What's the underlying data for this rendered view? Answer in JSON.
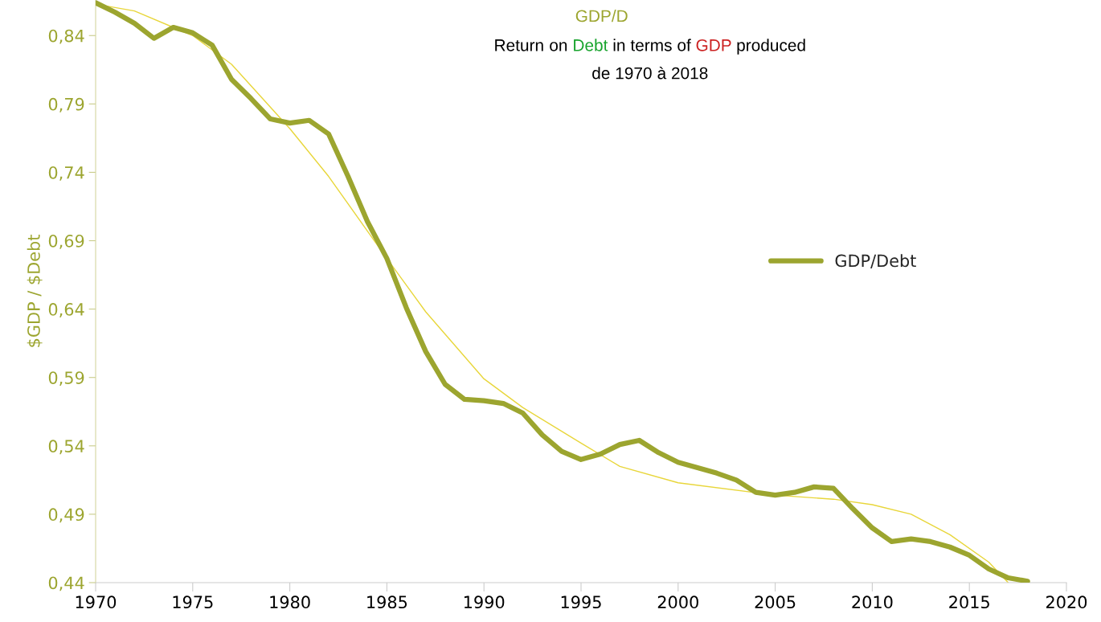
{
  "chart_data": {
    "type": "line",
    "title": "GDP/D",
    "subtitle": "Return on Debt in terms of GDP produced\nde 1970 à 2018",
    "ylabel": "$GDP / $Debt",
    "x": [
      1970,
      1971,
      1972,
      1973,
      1974,
      1975,
      1976,
      1977,
      1978,
      1979,
      1980,
      1981,
      1982,
      1983,
      1984,
      1985,
      1986,
      1987,
      1988,
      1989,
      1990,
      1991,
      1992,
      1993,
      1994,
      1995,
      1996,
      1997,
      1998,
      1999,
      2000,
      2001,
      2002,
      2003,
      2004,
      2005,
      2006,
      2007,
      2008,
      2009,
      2010,
      2011,
      2012,
      2013,
      2014,
      2015,
      2016,
      2017,
      2018
    ],
    "series": [
      {
        "name": "GDP/Debt",
        "color": "#9ca52f",
        "values": [
          0.864,
          0.857,
          0.849,
          0.838,
          0.846,
          0.842,
          0.833,
          0.808,
          0.794,
          0.779,
          0.776,
          0.778,
          0.768,
          0.737,
          0.704,
          0.677,
          0.641,
          0.609,
          0.585,
          0.574,
          0.573,
          0.571,
          0.564,
          0.548,
          0.536,
          0.53,
          0.534,
          0.541,
          0.544,
          0.535,
          0.528,
          0.524,
          0.52,
          0.515,
          0.506,
          0.504,
          0.506,
          0.51,
          0.509,
          0.494,
          0.48,
          0.47,
          0.472,
          0.47,
          0.466,
          0.46,
          0.45,
          0.4435,
          0.441
        ]
      },
      {
        "type": "line",
        "color": "#e8d63a",
        "x": [
          1970,
          1972,
          1975,
          1977,
          1980,
          1982,
          1985,
          1987,
          1990,
          1992,
          1995,
          1997,
          2000,
          2005,
          2008,
          2010,
          2012,
          2014,
          2016,
          2017
        ],
        "values": [
          0.863,
          0.858,
          0.84,
          0.819,
          0.772,
          0.737,
          0.677,
          0.638,
          0.589,
          0.568,
          0.542,
          0.525,
          0.513,
          0.504,
          0.501,
          0.497,
          0.49,
          0.475,
          0.455,
          0.44
        ]
      }
    ],
    "xlim": [
      1970,
      2020
    ],
    "xticks": [
      1970,
      1975,
      1980,
      1985,
      1990,
      1995,
      2000,
      2005,
      2010,
      2015,
      2020
    ],
    "ylim": [
      0.44,
      0.866
    ],
    "yticks": [
      {
        "value": 0.44,
        "label": "0,44"
      },
      {
        "value": 0.49,
        "label": "0,49"
      },
      {
        "value": 0.54,
        "label": "0,54"
      },
      {
        "value": 0.59,
        "label": "0,59"
      },
      {
        "value": 0.64,
        "label": "0,64"
      },
      {
        "value": 0.69,
        "label": "0,69"
      },
      {
        "value": 0.74,
        "label": "0,74"
      },
      {
        "value": 0.79,
        "label": "0,79"
      },
      {
        "value": 0.84,
        "label": "0,84"
      }
    ],
    "grid": false,
    "legend": "right"
  }
}
